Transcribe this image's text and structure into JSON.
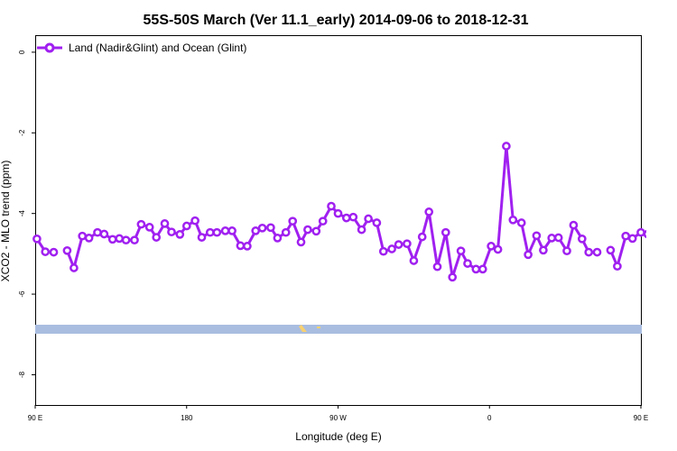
{
  "chart_data": {
    "type": "line",
    "title": "55S-50S March (Ver 11.1_early)   2014-09-06 to 2018-12-31",
    "xlabel": "Longitude (deg E)",
    "ylabel": "XCO2 - MLO trend (ppm)",
    "xlim": [
      90,
      450
    ],
    "ylim": [
      -8.75,
      0.4
    ],
    "x_ticks": [
      {
        "value": 90,
        "label": "90 E"
      },
      {
        "value": 180,
        "label": "180"
      },
      {
        "value": 270,
        "label": "90 W"
      },
      {
        "value": 360,
        "label": "0"
      },
      {
        "value": 450,
        "label": "90 E"
      },
      {
        "value": 540,
        "label": "180"
      }
    ],
    "y_ticks": [
      {
        "value": 0,
        "label": "0"
      },
      {
        "value": -2,
        "label": "-2"
      },
      {
        "value": -4,
        "label": "-4"
      },
      {
        "value": -6,
        "label": "-6"
      },
      {
        "value": -8,
        "label": "-8"
      }
    ],
    "legend": {
      "position": "top-left"
    },
    "series": [
      {
        "name": "Land (Nadir&Glint) and Ocean (Glint)",
        "color": "#a020f0",
        "segments": [
          [
            [
              91,
              -4.63
            ],
            [
              96,
              -4.95
            ],
            [
              101,
              -4.96
            ]
          ],
          [
            [
              109,
              -4.92
            ],
            [
              113,
              -5.35
            ],
            [
              118,
              -4.56
            ],
            [
              122,
              -4.61
            ],
            [
              127,
              -4.47
            ],
            [
              131,
              -4.51
            ],
            [
              136,
              -4.64
            ],
            [
              140,
              -4.62
            ],
            [
              144,
              -4.66
            ],
            [
              149,
              -4.66
            ],
            [
              153,
              -4.27
            ],
            [
              158,
              -4.34
            ],
            [
              162,
              -4.59
            ],
            [
              167,
              -4.25
            ],
            [
              171,
              -4.46
            ],
            [
              176,
              -4.52
            ],
            [
              180,
              -4.31
            ],
            [
              185,
              -4.18
            ],
            [
              189,
              -4.59
            ],
            [
              194,
              -4.47
            ],
            [
              198,
              -4.47
            ],
            [
              203,
              -4.43
            ],
            [
              207,
              -4.43
            ],
            [
              212,
              -4.8
            ],
            [
              216,
              -4.81
            ],
            [
              221,
              -4.43
            ],
            [
              225,
              -4.36
            ],
            [
              230,
              -4.35
            ],
            [
              234,
              -4.61
            ],
            [
              239,
              -4.47
            ],
            [
              243,
              -4.19
            ],
            [
              248,
              -4.71
            ],
            [
              252,
              -4.4
            ],
            [
              257,
              -4.44
            ],
            [
              261,
              -4.19
            ],
            [
              266,
              -3.82
            ],
            [
              270,
              -4.0
            ],
            [
              275,
              -4.11
            ],
            [
              279,
              -4.09
            ],
            [
              284,
              -4.4
            ],
            [
              288,
              -4.13
            ],
            [
              293,
              -4.23
            ],
            [
              297,
              -4.94
            ],
            [
              302,
              -4.88
            ],
            [
              306,
              -4.77
            ],
            [
              311,
              -4.75
            ],
            [
              315,
              -5.17
            ],
            [
              320,
              -4.58
            ],
            [
              324,
              -3.96
            ],
            [
              329,
              -5.32
            ],
            [
              334,
              -4.47
            ],
            [
              338,
              -5.58
            ],
            [
              343,
              -4.93
            ],
            [
              347,
              -5.24
            ],
            [
              352,
              -5.38
            ],
            [
              356,
              -5.38
            ],
            [
              361,
              -4.81
            ],
            [
              365,
              -4.89
            ],
            [
              370,
              -2.33
            ],
            [
              374,
              -4.16
            ],
            [
              379,
              -4.23
            ],
            [
              383,
              -5.02
            ],
            [
              388,
              -4.55
            ],
            [
              392,
              -4.91
            ],
            [
              397,
              -4.61
            ],
            [
              401,
              -4.6
            ],
            [
              406,
              -4.93
            ],
            [
              410,
              -4.29
            ],
            [
              415,
              -4.63
            ],
            [
              419,
              -4.96
            ],
            [
              424,
              -4.96
            ]
          ],
          [
            [
              432,
              -4.91
            ],
            [
              436,
              -5.31
            ],
            [
              441,
              -4.56
            ],
            [
              445,
              -4.62
            ],
            [
              450,
              -4.47
            ],
            [
              454,
              -4.51
            ],
            [
              459,
              -4.64
            ],
            [
              463,
              -4.62
            ],
            [
              468,
              -4.66
            ],
            [
              472,
              -4.66
            ],
            [
              477,
              -4.27
            ],
            [
              481,
              -4.34
            ],
            [
              486,
              -4.59
            ],
            [
              490,
              -4.25
            ]
          ]
        ]
      }
    ]
  }
}
